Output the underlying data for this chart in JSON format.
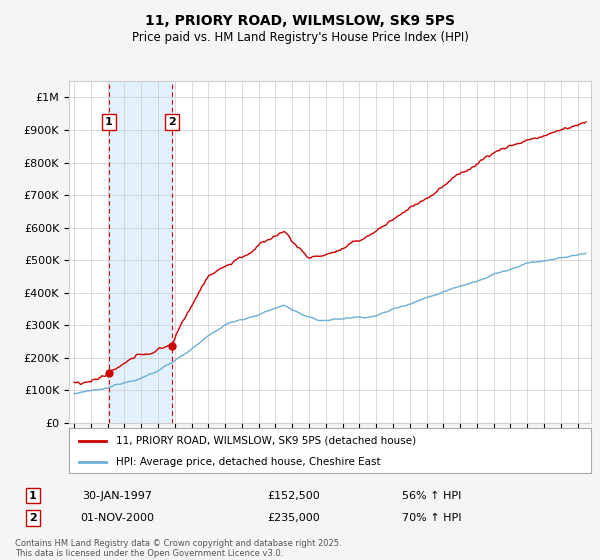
{
  "title": "11, PRIORY ROAD, WILMSLOW, SK9 5PS",
  "subtitle": "Price paid vs. HM Land Registry's House Price Index (HPI)",
  "legend_line1": "11, PRIORY ROAD, WILMSLOW, SK9 5PS (detached house)",
  "legend_line2": "HPI: Average price, detached house, Cheshire East",
  "footnote": "Contains HM Land Registry data © Crown copyright and database right 2025.\nThis data is licensed under the Open Government Licence v3.0.",
  "sale1_date": "30-JAN-1997",
  "sale1_price": "£152,500",
  "sale1_hpi": "56% ↑ HPI",
  "sale1_year": 1997.08,
  "sale1_value": 152500,
  "sale2_date": "01-NOV-2000",
  "sale2_price": "£235,000",
  "sale2_hpi": "70% ↑ HPI",
  "sale2_year": 2000.83,
  "sale2_value": 235000,
  "hpi_color": "#6baed6",
  "price_color": "#cc0000",
  "vline_color": "#cc0000",
  "shade_color": "#ddeeff",
  "background_color": "#f5f5f5",
  "plot_bg_color": "#ffffff",
  "grid_color": "#cccccc",
  "ylim": [
    0,
    1050000
  ],
  "yticks": [
    0,
    100000,
    200000,
    300000,
    400000,
    500000,
    600000,
    700000,
    800000,
    900000,
    1000000
  ],
  "ytick_labels": [
    "£0",
    "£100K",
    "£200K",
    "£300K",
    "£400K",
    "£500K",
    "£600K",
    "£700K",
    "£800K",
    "£900K",
    "£1M"
  ],
  "xlim_start": 1994.7,
  "xlim_end": 2025.8
}
